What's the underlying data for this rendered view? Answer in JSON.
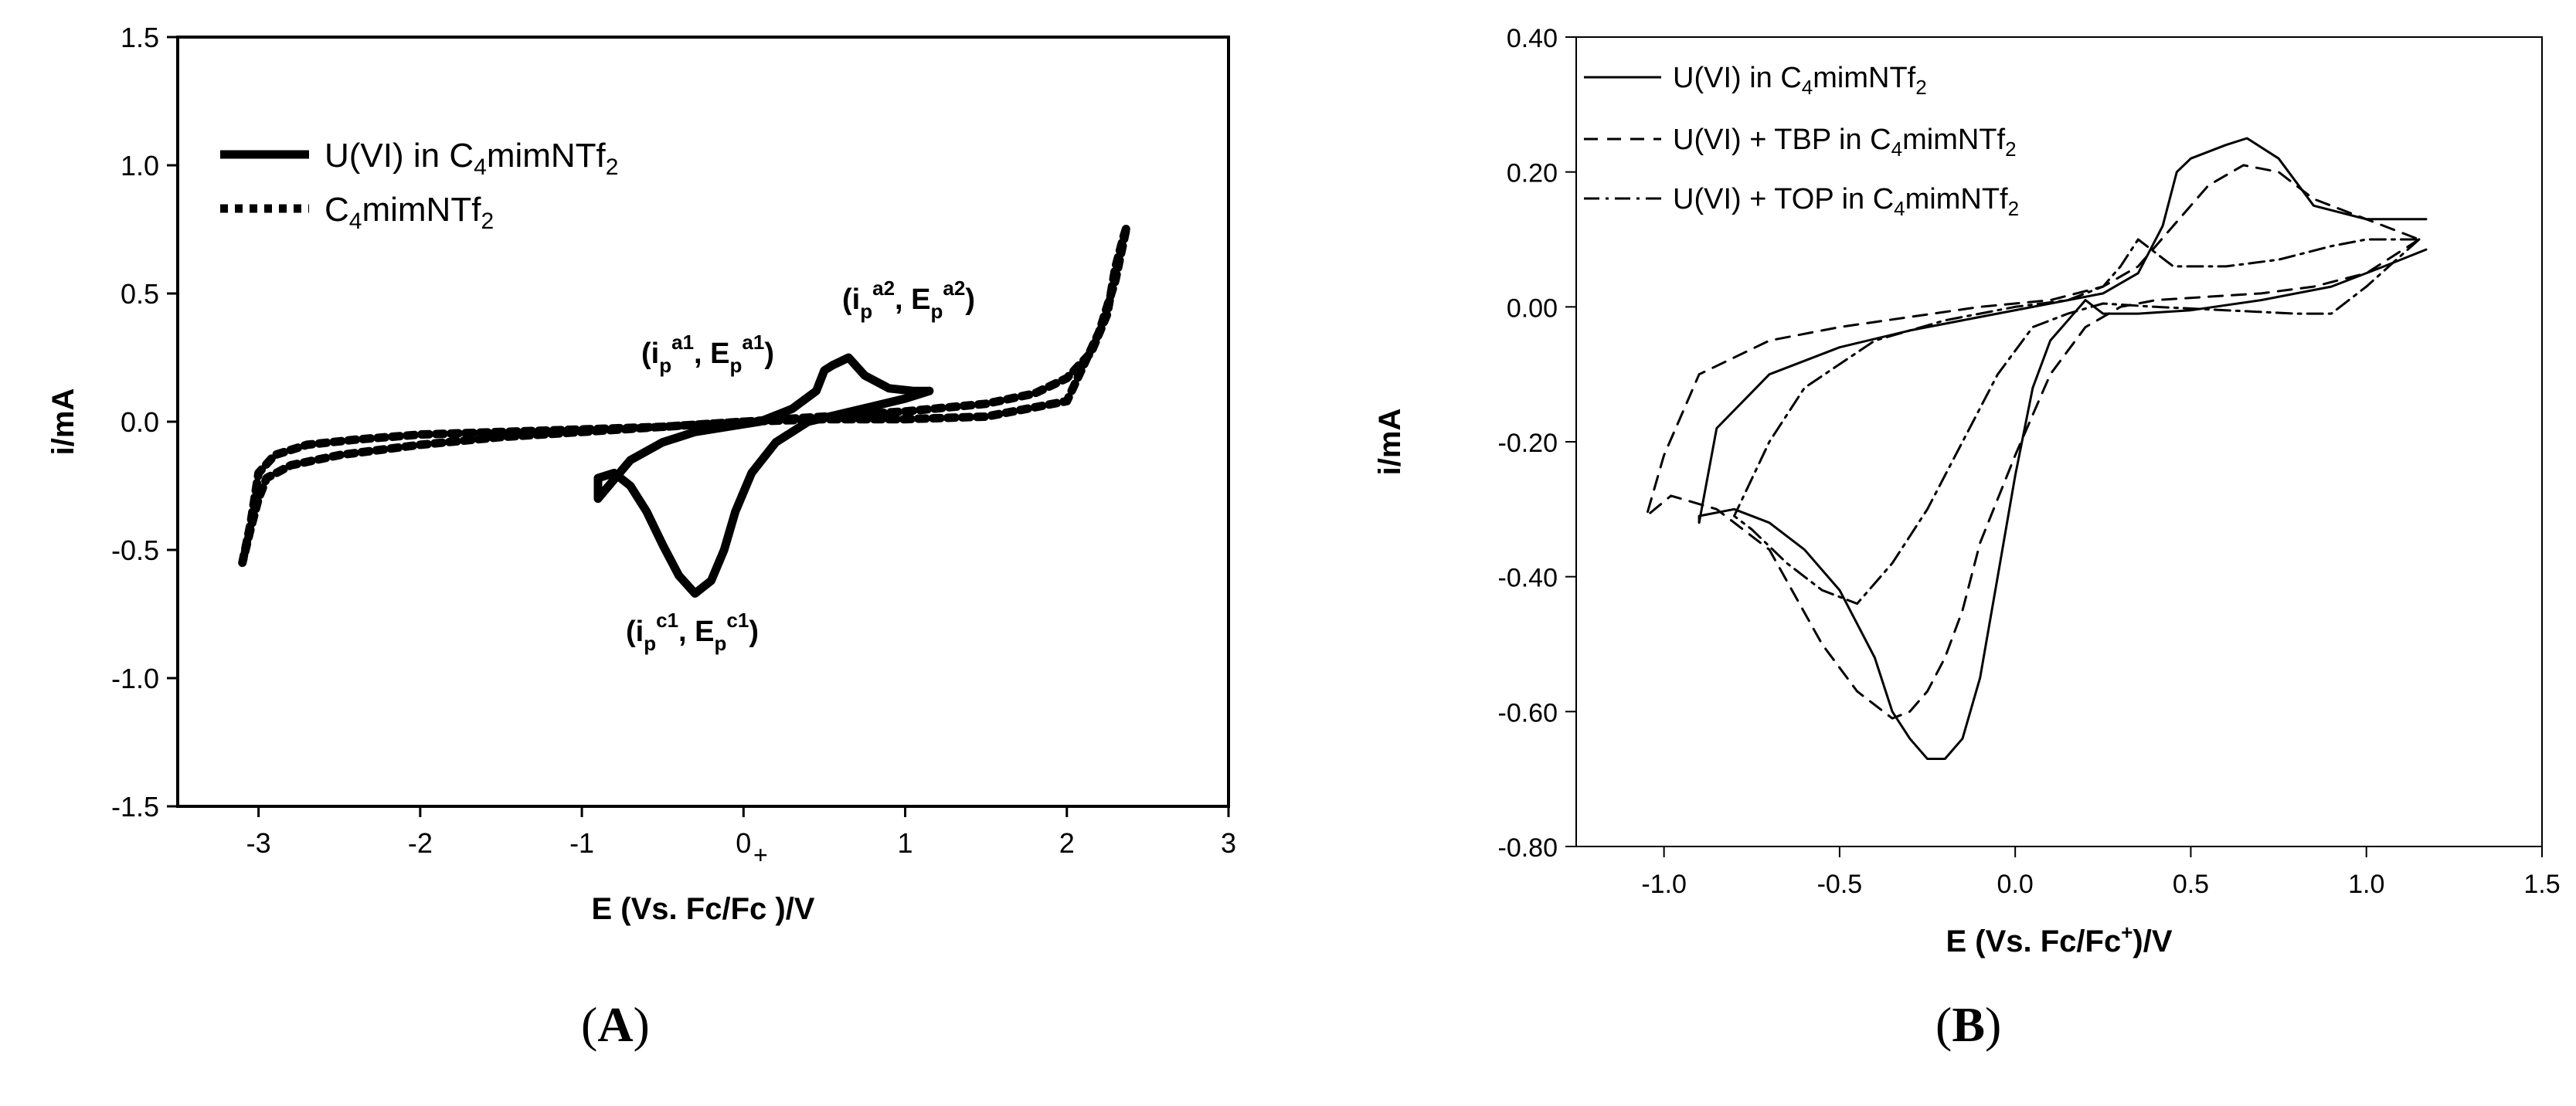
{
  "figure": {
    "labels": {
      "a": "A",
      "b": "B"
    }
  },
  "chart_data": [
    {
      "type": "line",
      "panel": "A",
      "xlabel": "E (Vs. Fc/Fc )/V",
      "ylabel": "i/mA",
      "xlim": [
        -3.5,
        3
      ],
      "ylim": [
        -1.5,
        1.5
      ],
      "xticks": [
        "-3",
        "-2",
        "-1",
        "0",
        "1",
        "2",
        "3"
      ],
      "yticks": [
        "1.5",
        "1.0",
        "0.5",
        "0.0",
        "-0.5",
        "-1.0",
        "-1.5"
      ],
      "legend": [
        {
          "label": "U(VI) in C4mimNTf2",
          "style": "solid-thick"
        },
        {
          "label": "C4mimNTf2",
          "style": "dotted"
        }
      ],
      "annotations": [
        {
          "text": "(ip a1, Ep a1)",
          "x": 0.45,
          "y": 0.22
        },
        {
          "text": "(ip a2, Ep a2)",
          "x": 0.65,
          "y": 0.25
        },
        {
          "text": "(ip c1, Ep c1)",
          "x": -0.3,
          "y": -0.68
        },
        {
          "text": "+",
          "x": 0.1,
          "y": 0.0
        }
      ],
      "series": [
        {
          "name": "U(VI) in C4mimNTf2",
          "style": "solid-thick",
          "x": [
            1.15,
            1.0,
            0.8,
            0.6,
            0.4,
            0.2,
            0.05,
            -0.05,
            -0.12,
            -0.2,
            -0.3,
            -0.4,
            -0.5,
            -0.6,
            -0.7,
            -0.8,
            -0.9,
            -0.9,
            -0.7,
            -0.5,
            -0.3,
            -0.1,
            0.1,
            0.3,
            0.45,
            0.5,
            0.55,
            0.65,
            0.75,
            0.9,
            1.05,
            1.15
          ],
          "y": [
            0.12,
            0.09,
            0.06,
            0.03,
            0.0,
            -0.08,
            -0.2,
            -0.35,
            -0.5,
            -0.62,
            -0.67,
            -0.6,
            -0.48,
            -0.35,
            -0.25,
            -0.2,
            -0.22,
            -0.3,
            -0.15,
            -0.08,
            -0.04,
            -0.02,
            0.0,
            0.05,
            0.12,
            0.2,
            0.22,
            0.25,
            0.18,
            0.13,
            0.12,
            0.12
          ]
        },
        {
          "name": "C4mimNTf2",
          "style": "dotted",
          "x": [
            -3.1,
            -3.05,
            -3.0,
            -2.9,
            -2.7,
            -2.4,
            -2.0,
            -1.5,
            -1.0,
            -0.5,
            0.0,
            0.5,
            1.0,
            1.5,
            1.8,
            2.0,
            2.15,
            2.25,
            2.3,
            2.35,
            2.37,
            2.3,
            2.2,
            2.0,
            1.5,
            1.0,
            0.5,
            0.0,
            -0.5,
            -1.0,
            -1.5,
            -2.0,
            -2.5,
            -2.8,
            -2.95,
            -3.0,
            -3.05,
            -3.1
          ],
          "y": [
            -0.55,
            -0.4,
            -0.2,
            -0.13,
            -0.09,
            -0.07,
            -0.05,
            -0.04,
            -0.03,
            -0.02,
            0.0,
            0.02,
            0.04,
            0.07,
            0.11,
            0.17,
            0.27,
            0.42,
            0.6,
            0.72,
            0.76,
            0.55,
            0.35,
            0.08,
            0.02,
            0.01,
            0.01,
            0.0,
            -0.02,
            -0.04,
            -0.06,
            -0.09,
            -0.13,
            -0.17,
            -0.22,
            -0.3,
            -0.42,
            -0.55
          ]
        }
      ]
    },
    {
      "type": "line",
      "panel": "B",
      "xlabel": "E (Vs. Fc/Fc+)/V",
      "ylabel": "i/mA",
      "xlim": [
        -1.25,
        1.5
      ],
      "ylim": [
        -0.8,
        0.4
      ],
      "xticks": [
        "-1.0",
        "-0.5",
        "0.0",
        "0.5",
        "1.0",
        "1.5"
      ],
      "yticks": [
        "0.40",
        "0.20",
        "0.00",
        "-0.20",
        "-0.40",
        "-0.60",
        "-0.80"
      ],
      "legend": [
        {
          "label": "U(VI) in C4mimNTf2",
          "style": "solid"
        },
        {
          "label": "U(VI) + TBP in C4mimNTf2",
          "style": "dashed"
        },
        {
          "label": "U(VI) + TOP in C4mimNTf2",
          "style": "dashdot"
        }
      ],
      "series": [
        {
          "name": "U(VI) in C4mimNTf2",
          "style": "solid",
          "x": [
            1.17,
            1.05,
            0.9,
            0.7,
            0.5,
            0.35,
            0.25,
            0.2,
            0.15,
            0.1,
            0.05,
            0.0,
            -0.05,
            -0.1,
            -0.15,
            -0.2,
            -0.25,
            -0.3,
            -0.35,
            -0.4,
            -0.5,
            -0.6,
            -0.7,
            -0.8,
            -0.9,
            -0.9,
            -0.85,
            -0.7,
            -0.5,
            -0.3,
            -0.1,
            0.1,
            0.25,
            0.35,
            0.42,
            0.46,
            0.5,
            0.6,
            0.66,
            0.75,
            0.85,
            1.0,
            1.17
          ],
          "y": [
            0.085,
            0.06,
            0.03,
            0.01,
            -0.005,
            -0.01,
            -0.01,
            0.01,
            -0.02,
            -0.05,
            -0.12,
            -0.25,
            -0.4,
            -0.55,
            -0.64,
            -0.67,
            -0.67,
            -0.64,
            -0.6,
            -0.52,
            -0.42,
            -0.36,
            -0.32,
            -0.3,
            -0.31,
            -0.32,
            -0.18,
            -0.1,
            -0.06,
            -0.035,
            -0.015,
            0.005,
            0.02,
            0.05,
            0.12,
            0.2,
            0.22,
            0.24,
            0.25,
            0.22,
            0.15,
            0.13,
            0.13
          ]
        },
        {
          "name": "U(VI) + TBP in C4mimNTf2",
          "style": "dashed",
          "x": [
            1.15,
            1.0,
            0.85,
            0.7,
            0.55,
            0.4,
            0.3,
            0.2,
            0.1,
            0.0,
            -0.1,
            -0.15,
            -0.2,
            -0.25,
            -0.3,
            -0.35,
            -0.45,
            -0.55,
            -0.7,
            -0.85,
            -0.98,
            -1.05,
            -1.0,
            -0.9,
            -0.7,
            -0.5,
            -0.3,
            -0.1,
            0.1,
            0.25,
            0.35,
            0.45,
            0.55,
            0.65,
            0.75,
            0.85,
            1.0,
            1.15
          ],
          "y": [
            0.1,
            0.05,
            0.03,
            0.02,
            0.015,
            0.01,
            0.0,
            -0.03,
            -0.1,
            -0.22,
            -0.35,
            -0.45,
            -0.52,
            -0.57,
            -0.6,
            -0.61,
            -0.57,
            -0.5,
            -0.36,
            -0.3,
            -0.28,
            -0.31,
            -0.22,
            -0.1,
            -0.05,
            -0.03,
            -0.015,
            0.0,
            0.01,
            0.03,
            0.06,
            0.12,
            0.18,
            0.21,
            0.2,
            0.16,
            0.13,
            0.1
          ]
        },
        {
          "name": "U(VI) + TOP in C4mimNTf2",
          "style": "dashdot",
          "x": [
            1.15,
            1.0,
            0.9,
            0.8,
            0.6,
            0.4,
            0.25,
            0.15,
            0.05,
            -0.05,
            -0.15,
            -0.25,
            -0.35,
            -0.45,
            -0.55,
            -0.65,
            -0.75,
            -0.8,
            -0.7,
            -0.6,
            -0.4,
            -0.2,
            0.0,
            0.15,
            0.25,
            0.3,
            0.35,
            0.45,
            0.6,
            0.75,
            0.9,
            1.0,
            1.15
          ],
          "y": [
            0.1,
            0.03,
            -0.01,
            -0.01,
            -0.005,
            0.0,
            0.005,
            -0.01,
            -0.03,
            -0.1,
            -0.2,
            -0.3,
            -0.38,
            -0.44,
            -0.42,
            -0.38,
            -0.33,
            -0.31,
            -0.2,
            -0.12,
            -0.05,
            -0.02,
            0.0,
            0.01,
            0.03,
            0.06,
            0.1,
            0.06,
            0.06,
            0.07,
            0.09,
            0.1,
            0.1
          ]
        }
      ]
    }
  ]
}
